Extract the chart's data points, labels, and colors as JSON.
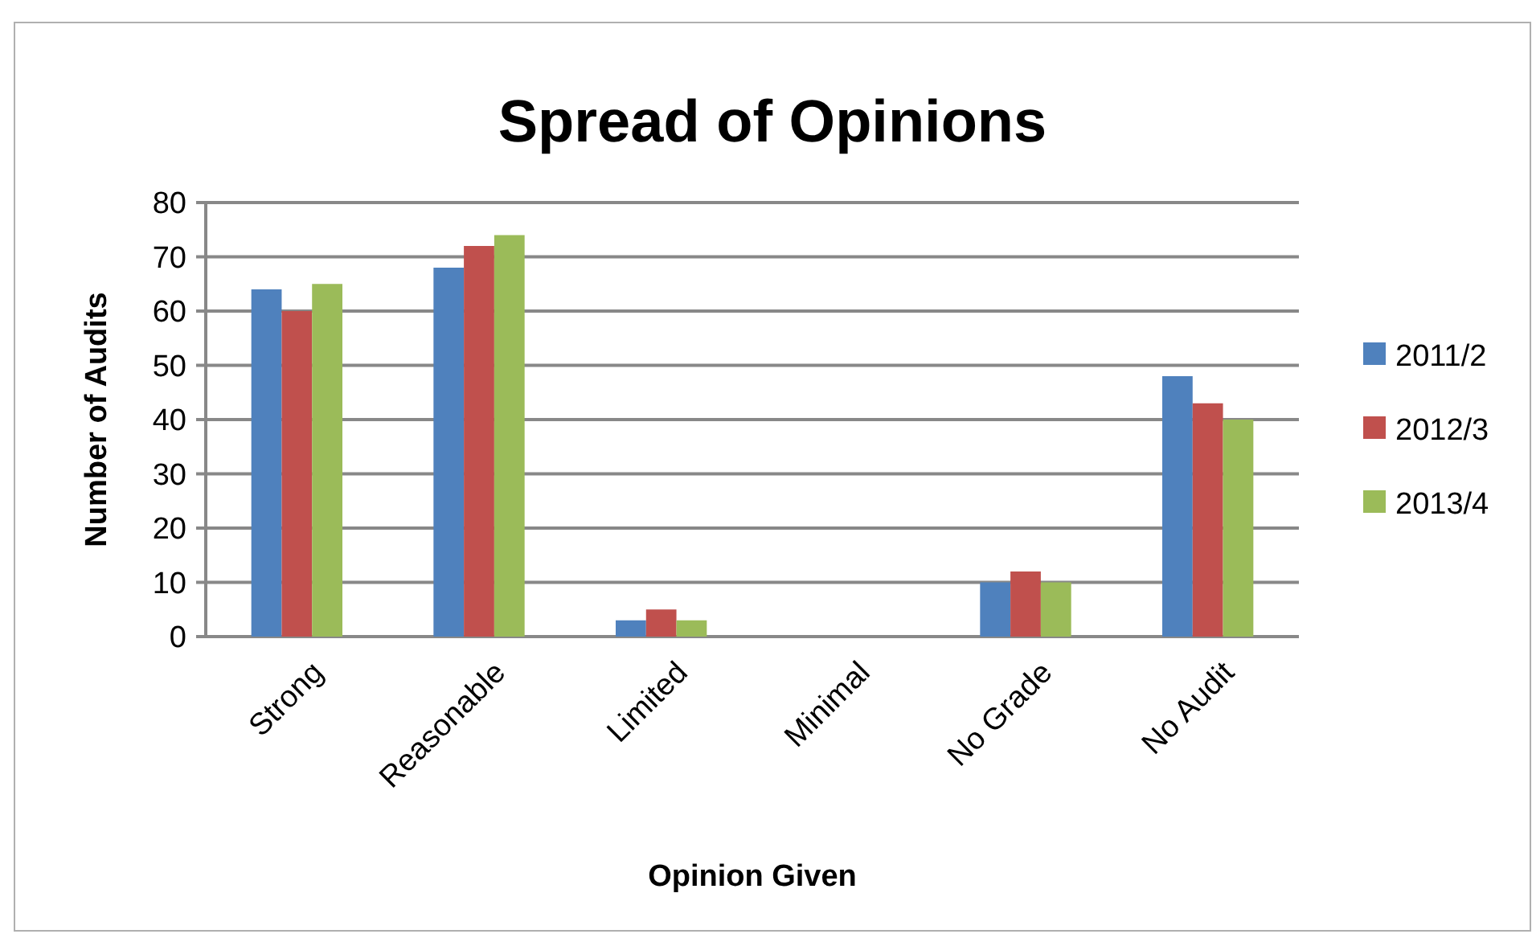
{
  "chart_data": {
    "type": "bar",
    "title": "Spread of Opinions",
    "xlabel": "Opinion Given",
    "ylabel": "Number of Audits",
    "categories": [
      "Strong",
      "Reasonable",
      "Limited",
      "Minimal",
      "No Grade",
      "No Audit"
    ],
    "series": [
      {
        "name": "2011/2",
        "color": "#4f81bd",
        "values": [
          64,
          68,
          3,
          0,
          10,
          48
        ]
      },
      {
        "name": "2012/3",
        "color": "#c0504d",
        "values": [
          60,
          72,
          5,
          0,
          12,
          43
        ]
      },
      {
        "name": "2013/4",
        "color": "#9bbb59",
        "values": [
          65,
          74,
          3,
          0,
          10,
          40
        ]
      }
    ],
    "ylim": [
      0,
      80
    ],
    "yticks": [
      0,
      10,
      20,
      30,
      40,
      50,
      60,
      70,
      80
    ],
    "grid": "y",
    "legend": "right"
  }
}
